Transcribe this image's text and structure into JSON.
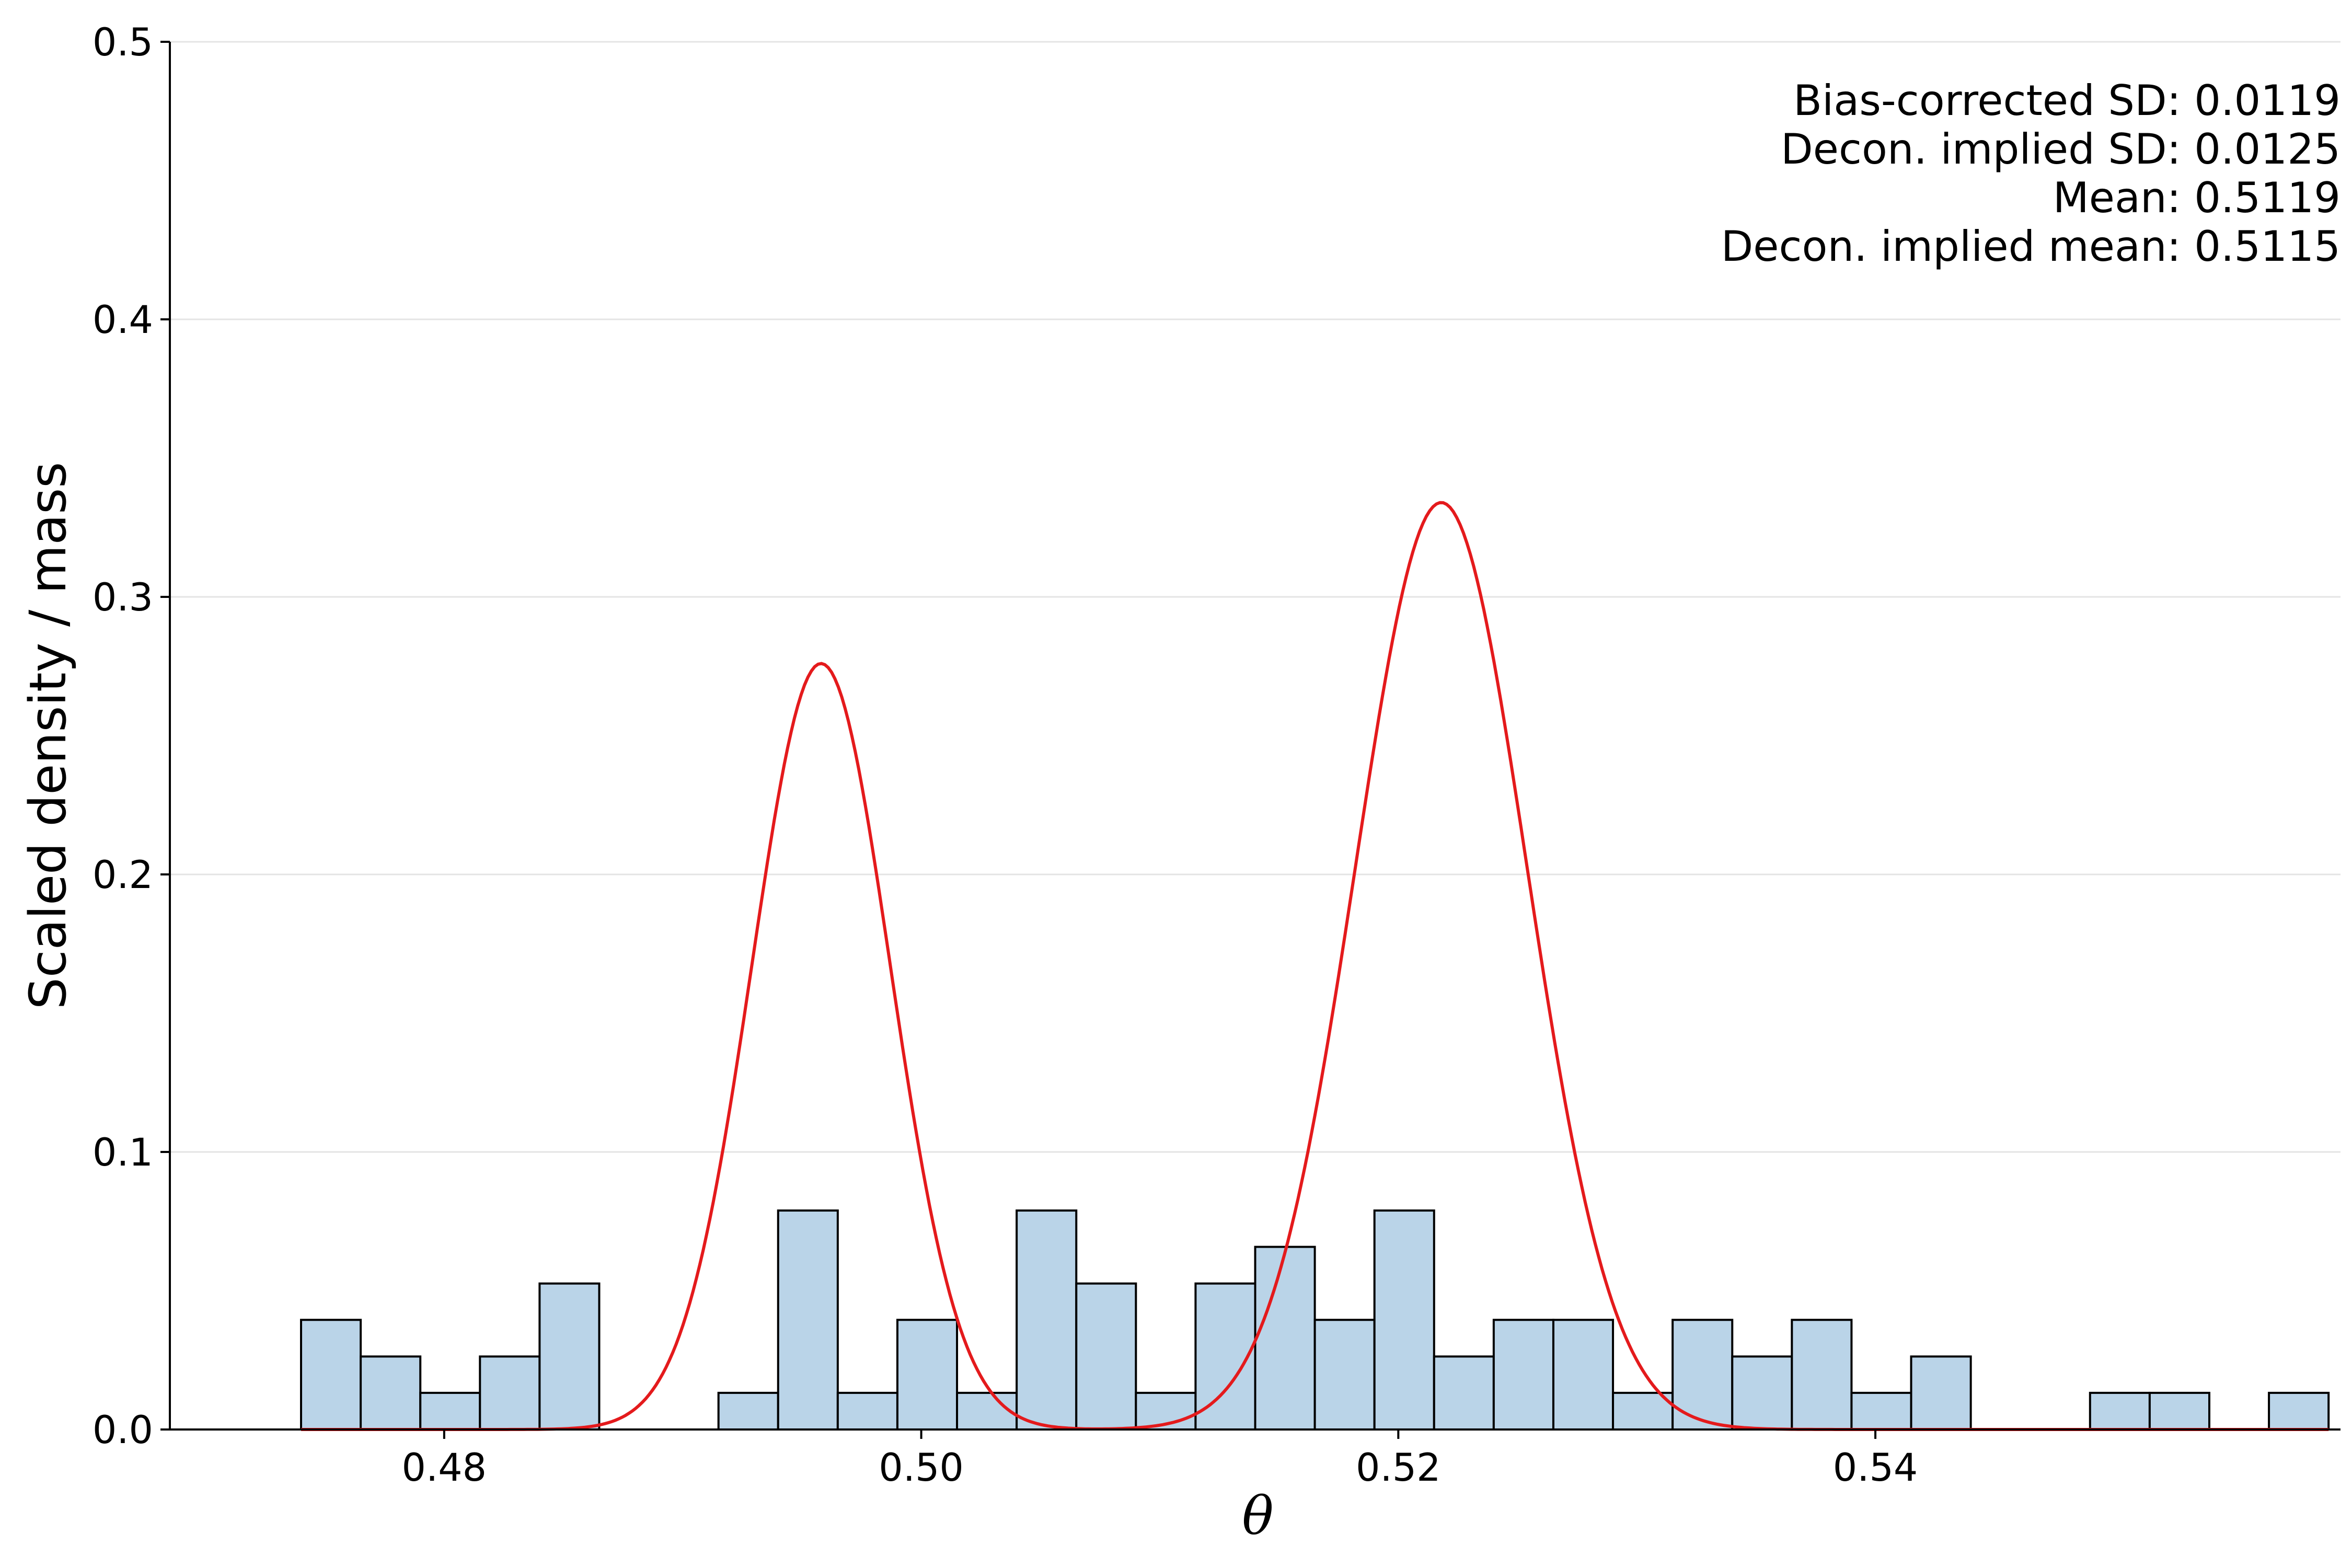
{
  "chart_data": {
    "type": "bar",
    "xlabel": "θ",
    "ylabel": "Scaled density / mass",
    "xlim": [
      0.4685,
      0.5595
    ],
    "ylim": [
      0,
      0.5
    ],
    "xticks": [
      {
        "value": 0.48,
        "label": "0.48"
      },
      {
        "value": 0.5,
        "label": "0.50"
      },
      {
        "value": 0.52,
        "label": "0.52"
      },
      {
        "value": 0.54,
        "label": "0.54"
      }
    ],
    "yticks": [
      {
        "value": 0.0,
        "label": "0.0"
      },
      {
        "value": 0.1,
        "label": "0.1"
      },
      {
        "value": 0.2,
        "label": "0.2"
      },
      {
        "value": 0.3,
        "label": "0.3"
      },
      {
        "value": 0.4,
        "label": "0.4"
      },
      {
        "value": 0.5,
        "label": "0.5"
      }
    ],
    "grid": "horizontal",
    "histogram": {
      "bin_start": 0.474,
      "bin_width": 0.0025,
      "values": [
        0.0395,
        0.0263,
        0.0132,
        0.0263,
        0.0526,
        0,
        0,
        0.0132,
        0.0789,
        0.0132,
        0.0395,
        0.0132,
        0.0789,
        0.0526,
        0.0132,
        0.0526,
        0.0658,
        0.0395,
        0.0789,
        0.0263,
        0.0395,
        0.0395,
        0.0132,
        0.0395,
        0.0263,
        0.0395,
        0.0132,
        0.0263,
        0,
        0,
        0.0132,
        0.0132,
        0,
        0.0132
      ],
      "fill": "#bad4e8",
      "edge": "#000000"
    },
    "density_curve": {
      "color": "#e41a1c",
      "components": [
        {
          "weight": 0.4,
          "mean": 0.4958,
          "sd": 0.0029
        },
        {
          "weight": 0.6,
          "mean": 0.5218,
          "sd": 0.0036
        }
      ],
      "peak_values": [
        0.276,
        0.334
      ]
    },
    "annotations": [
      "Bias-corrected SD: 0.0119",
      "Decon. implied SD: 0.0125",
      "Mean: 0.5119",
      "Decon. implied mean: 0.5115"
    ]
  }
}
